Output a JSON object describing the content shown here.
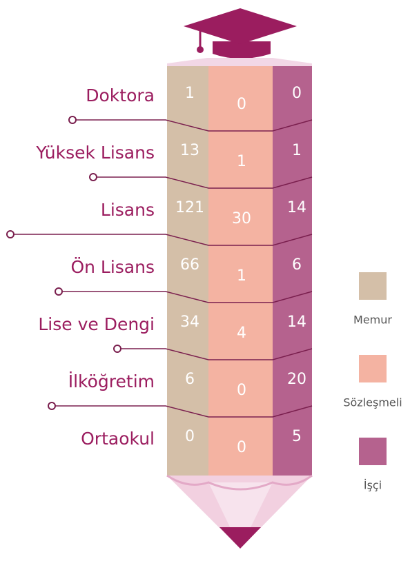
{
  "rows": [
    {
      "label": "Doktora",
      "memur": 1,
      "sozlesmeli": 0,
      "isci": 0
    },
    {
      "label": "Yüksek Lisans",
      "memur": 13,
      "sozlesmeli": 1,
      "isci": 1
    },
    {
      "label": "Lisans",
      "memur": 121,
      "sozlesmeli": 30,
      "isci": 14
    },
    {
      "label": "Ön Lisans",
      "memur": 66,
      "sozlesmeli": 1,
      "isci": 6
    },
    {
      "label": "Lise ve Dengi",
      "memur": 34,
      "sozlesmeli": 4,
      "isci": 14
    },
    {
      "label": "İlköğretim",
      "memur": 6,
      "sozlesmeli": 0,
      "isci": 20
    },
    {
      "label": "Ortaokul",
      "memur": 0,
      "sozlesmeli": 0,
      "isci": 5
    }
  ],
  "legend": [
    "Memur",
    "Sözleşmeli",
    "İşçi"
  ]
}
